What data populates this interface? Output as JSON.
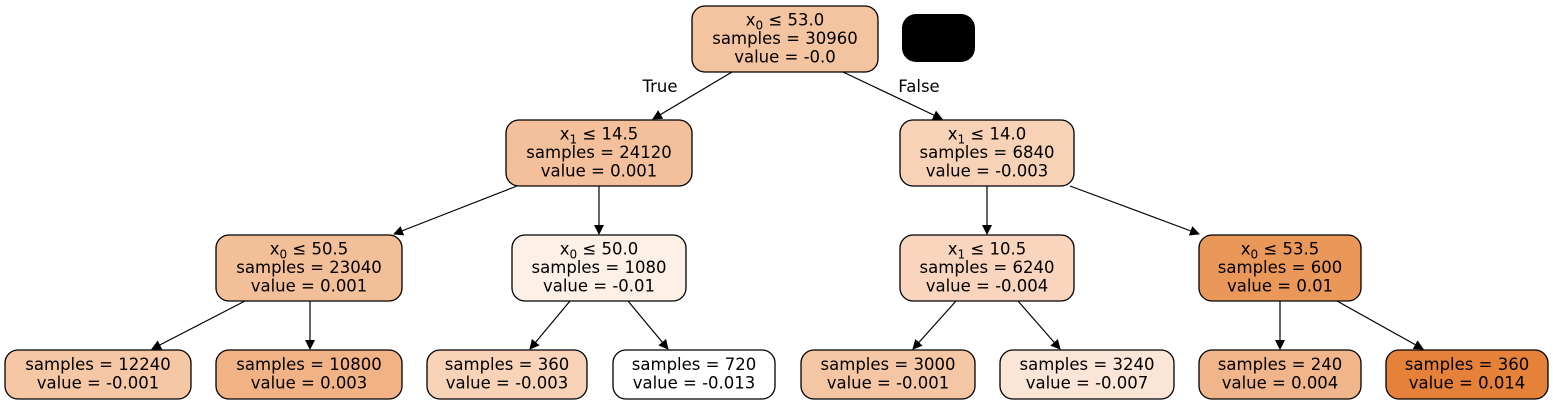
{
  "edge_labels": {
    "true_label": "True",
    "false_label": "False"
  },
  "nodes": [
    {
      "id": "n0",
      "lines": [
        {
          "var": "x",
          "sub": "0",
          "rest": " ≤ 53.0"
        },
        "samples = 30960",
        "value = -0.0"
      ],
      "fill": "#f4c39f"
    },
    {
      "id": "n1",
      "lines": [
        {
          "var": "x",
          "sub": "1",
          "rest": " ≤ 14.5"
        },
        "samples = 24120",
        "value = 0.001"
      ],
      "fill": "#f3c09b"
    },
    {
      "id": "n2",
      "lines": [
        {
          "var": "x",
          "sub": "1",
          "rest": " ≤ 14.0"
        },
        "samples = 6840",
        "value = -0.003"
      ],
      "fill": "#f7d2b7"
    },
    {
      "id": "n3",
      "lines": [
        {
          "var": "x",
          "sub": "0",
          "rest": " ≤ 50.5"
        },
        "samples = 23040",
        "value = 0.001"
      ],
      "fill": "#f3bf99"
    },
    {
      "id": "n4",
      "lines": [
        {
          "var": "x",
          "sub": "0",
          "rest": " ≤ 50.0"
        },
        "samples = 1080",
        "value = -0.01"
      ],
      "fill": "#fcf0e7"
    },
    {
      "id": "n5",
      "lines": [
        {
          "var": "x",
          "sub": "1",
          "rest": " ≤ 10.5"
        },
        "samples = 6240",
        "value = -0.004"
      ],
      "fill": "#f8d5bc"
    },
    {
      "id": "n6",
      "lines": [
        {
          "var": "x",
          "sub": "0",
          "rest": " ≤ 53.5"
        },
        "samples = 600",
        "value = 0.01"
      ],
      "fill": "#ea975a"
    },
    {
      "id": "l0",
      "lines": [
        "samples = 12240",
        "value = -0.001"
      ],
      "fill": "#f5c7a5"
    },
    {
      "id": "l1",
      "lines": [
        "samples = 10800",
        "value = 0.003"
      ],
      "fill": "#f1b386"
    },
    {
      "id": "l2",
      "lines": [
        "samples = 360",
        "value = -0.003"
      ],
      "fill": "#f8d3b8"
    },
    {
      "id": "l3",
      "lines": [
        "samples = 720",
        "value = -0.013"
      ],
      "fill": "#ffffff"
    },
    {
      "id": "l4",
      "lines": [
        "samples = 3000",
        "value = -0.001"
      ],
      "fill": "#f5c6a4"
    },
    {
      "id": "l5",
      "lines": [
        "samples = 3240",
        "value = -0.007"
      ],
      "fill": "#fbe5d6"
    },
    {
      "id": "l6",
      "lines": [
        "samples = 240",
        "value = 0.004"
      ],
      "fill": "#f1b58b"
    },
    {
      "id": "l7",
      "lines": [
        "samples = 360",
        "value = 0.014"
      ],
      "fill": "#e58139"
    }
  ],
  "colors": {
    "redacted_box": "#000000"
  }
}
